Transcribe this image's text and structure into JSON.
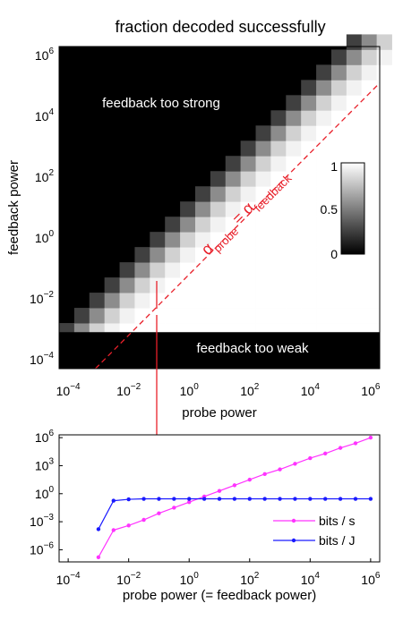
{
  "chart_data": [
    {
      "type": "heatmap",
      "title": "fraction decoded successfully",
      "xlabel": "probe power",
      "ylabel": "feedback power",
      "x_log10_range": [
        -4.3,
        6.3
      ],
      "y_log10_range": [
        -4.3,
        6.3
      ],
      "x_ticks": [
        {
          "b": "10",
          "e": "−4",
          "v": -4
        },
        {
          "b": "10",
          "e": "−2",
          "v": -2
        },
        {
          "b": "10",
          "e": "0",
          "v": 0
        },
        {
          "b": "10",
          "e": "2",
          "v": 2
        },
        {
          "b": "10",
          "e": "4",
          "v": 4
        },
        {
          "b": "10",
          "e": "6",
          "v": 6
        }
      ],
      "y_ticks": [
        {
          "b": "10",
          "e": "−4",
          "v": -4
        },
        {
          "b": "10",
          "e": "−2",
          "v": -2
        },
        {
          "b": "10",
          "e": "0",
          "v": 0
        },
        {
          "b": "10",
          "e": "2",
          "v": 2
        },
        {
          "b": "10",
          "e": "4",
          "v": 4
        },
        {
          "b": "10",
          "e": "6",
          "v": 6
        }
      ],
      "grid_log10_step": 0.5,
      "colorbar": {
        "ticks": [
          "1",
          "0.5",
          "0"
        ],
        "range": [
          0,
          1
        ]
      },
      "annotations": {
        "top": "feedback too strong",
        "bottom": "feedback too weak",
        "diagonal": {
          "a1": "α",
          "s1": "probe",
          "eq": " = ",
          "a2": "α",
          "s2": "feedback"
        }
      },
      "threshold_log10_feedback": -3.1,
      "colors": {
        "line": "#e8202a"
      }
    },
    {
      "type": "line",
      "xlabel": "probe power (= feedback power)",
      "ylabel": "",
      "x_log10_range": [
        -4.3,
        6.3
      ],
      "y_log10_range": [
        -7.3,
        6.3
      ],
      "x_ticks": [
        {
          "b": "10",
          "e": "−4",
          "v": -4
        },
        {
          "b": "10",
          "e": "−2",
          "v": -2
        },
        {
          "b": "10",
          "e": "0",
          "v": 0
        },
        {
          "b": "10",
          "e": "2",
          "v": 2
        },
        {
          "b": "10",
          "e": "4",
          "v": 4
        },
        {
          "b": "10",
          "e": "6",
          "v": 6
        }
      ],
      "y_ticks": [
        {
          "b": "10",
          "e": "−6",
          "v": -6
        },
        {
          "b": "10",
          "e": "−3",
          "v": -3
        },
        {
          "b": "10",
          "e": "0",
          "v": 0
        },
        {
          "b": "10",
          "e": "3",
          "v": 3
        },
        {
          "b": "10",
          "e": "6",
          "v": 6
        }
      ],
      "legend_position": "bottom-right",
      "series": [
        {
          "name": "bits / s",
          "color": "#ff33ff",
          "x_log10": [
            -3.0,
            -2.5,
            -2.0,
            -1.5,
            -1.0,
            -0.5,
            0.0,
            0.5,
            1.0,
            1.5,
            2.0,
            2.5,
            3.0,
            3.5,
            4.0,
            4.5,
            5.0,
            5.5,
            6.0
          ],
          "y_log10": [
            -6.8,
            -3.9,
            -3.4,
            -2.8,
            -2.1,
            -1.5,
            -0.9,
            -0.3,
            0.3,
            0.9,
            1.5,
            2.1,
            2.6,
            3.2,
            3.8,
            4.3,
            4.9,
            5.4,
            6.0
          ]
        },
        {
          "name": "bits / J",
          "color": "#1a1aff",
          "x_log10": [
            -3.0,
            -2.5,
            -2.0,
            -1.5,
            -1.0,
            -0.5,
            0.0,
            0.5,
            1.0,
            1.5,
            2.0,
            2.5,
            3.0,
            3.5,
            4.0,
            4.5,
            5.0,
            5.5,
            6.0
          ],
          "y_log10": [
            -3.8,
            -0.75,
            -0.6,
            -0.55,
            -0.55,
            -0.55,
            -0.55,
            -0.55,
            -0.55,
            -0.55,
            -0.55,
            -0.55,
            -0.55,
            -0.55,
            -0.55,
            -0.55,
            -0.55,
            -0.55,
            -0.55
          ]
        }
      ]
    }
  ]
}
